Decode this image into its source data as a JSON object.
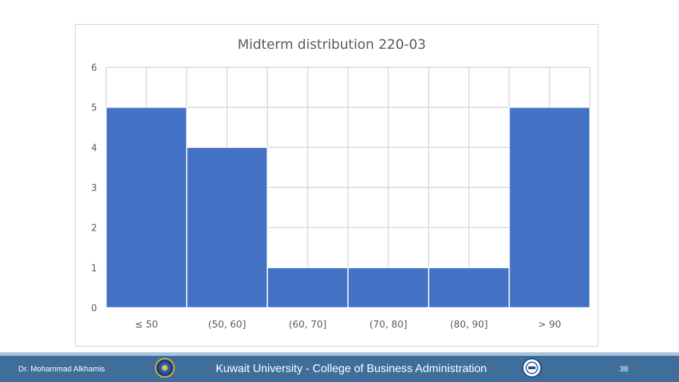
{
  "chart_data": {
    "type": "bar",
    "title": "Midterm distribution 220-03",
    "categories": [
      "≤ 50",
      "(50, 60]",
      "(60, 70]",
      "(70, 80]",
      "(80, 90]",
      "> 90"
    ],
    "values": [
      5,
      4,
      1,
      1,
      1,
      5
    ],
    "xlabel": "",
    "ylabel": "",
    "ylim": [
      0,
      6
    ],
    "yticks": [
      "0",
      "1",
      "2",
      "3",
      "4",
      "5",
      "6"
    ],
    "grid": true,
    "legend": "none",
    "bar_color": "#4472c4",
    "grid_color": "#d9d9d9",
    "title_color": "#595959",
    "tick_color": "#595959"
  },
  "footer": {
    "author": "Dr. Mohammad Alkhamis",
    "institution": "Kuwait University - College of Business Administration",
    "page_number": "38",
    "background_color": "#3f6e9b",
    "left_logo_icon": "university-seal-icon",
    "right_logo_icon": "accreditation-seal-icon"
  }
}
